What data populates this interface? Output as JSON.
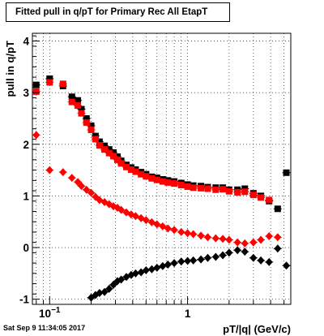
{
  "chart_data": {
    "type": "scatter",
    "title": "Fitted pull in q/pT for Primary Rec All EtapT",
    "xlabel": "pT/|q| (GeV/c)",
    "ylabel": "pull in q/pT",
    "xscale": "log",
    "xlim": [
      0.075,
      5.6
    ],
    "ylim": [
      -1.1,
      4.15
    ],
    "yticks": [
      -1,
      0,
      1,
      2,
      3,
      4
    ],
    "xtick_labels": [
      {
        "value": 0.1,
        "label": "10−1"
      },
      {
        "value": 1,
        "label": "1"
      }
    ],
    "grid": true,
    "series": [
      {
        "colors": {
          "marker": "#000000"
        },
        "marker": "square",
        "points": [
          [
            0.08,
            3.15
          ],
          [
            0.1,
            3.27
          ],
          [
            0.125,
            3.13
          ],
          [
            0.145,
            2.92
          ],
          [
            0.16,
            2.85
          ],
          [
            0.17,
            2.68
          ],
          [
            0.185,
            2.5
          ],
          [
            0.2,
            2.36
          ],
          [
            0.215,
            2.16
          ],
          [
            0.23,
            2.05
          ],
          [
            0.25,
            1.97
          ],
          [
            0.27,
            1.9
          ],
          [
            0.29,
            1.84
          ],
          [
            0.31,
            1.76
          ],
          [
            0.33,
            1.68
          ],
          [
            0.36,
            1.6
          ],
          [
            0.39,
            1.55
          ],
          [
            0.42,
            1.51
          ],
          [
            0.46,
            1.46
          ],
          [
            0.5,
            1.42
          ],
          [
            0.55,
            1.37
          ],
          [
            0.6,
            1.35
          ],
          [
            0.66,
            1.32
          ],
          [
            0.72,
            1.3
          ],
          [
            0.8,
            1.28
          ],
          [
            0.9,
            1.25
          ],
          [
            1.0,
            1.22
          ],
          [
            1.1,
            1.2
          ],
          [
            1.25,
            1.19
          ],
          [
            1.4,
            1.17
          ],
          [
            1.6,
            1.16
          ],
          [
            1.8,
            1.16
          ],
          [
            2.0,
            1.12
          ],
          [
            2.3,
            1.12
          ],
          [
            2.6,
            1.14
          ],
          [
            3.0,
            1.05
          ],
          [
            3.4,
            1.0
          ],
          [
            3.9,
            0.9
          ],
          [
            4.5,
            0.75
          ],
          [
            5.2,
            1.45
          ]
        ]
      },
      {
        "colors": {
          "marker": "#ff0000"
        },
        "marker": "square",
        "points": [
          [
            0.08,
            3.02
          ],
          [
            0.1,
            3.2
          ],
          [
            0.125,
            3.17
          ],
          [
            0.145,
            2.82
          ],
          [
            0.16,
            2.75
          ],
          [
            0.17,
            2.6
          ],
          [
            0.185,
            2.42
          ],
          [
            0.2,
            2.28
          ],
          [
            0.215,
            2.1
          ],
          [
            0.23,
            1.98
          ],
          [
            0.25,
            1.9
          ],
          [
            0.27,
            1.83
          ],
          [
            0.29,
            1.77
          ],
          [
            0.31,
            1.7
          ],
          [
            0.33,
            1.63
          ],
          [
            0.36,
            1.56
          ],
          [
            0.39,
            1.51
          ],
          [
            0.42,
            1.47
          ],
          [
            0.46,
            1.42
          ],
          [
            0.5,
            1.38
          ],
          [
            0.55,
            1.34
          ],
          [
            0.6,
            1.31
          ],
          [
            0.66,
            1.28
          ],
          [
            0.72,
            1.26
          ],
          [
            0.8,
            1.24
          ],
          [
            0.9,
            1.21
          ],
          [
            1.0,
            1.18
          ],
          [
            1.1,
            1.16
          ],
          [
            1.25,
            1.15
          ],
          [
            1.4,
            1.14
          ],
          [
            1.6,
            1.12
          ],
          [
            1.8,
            1.13
          ],
          [
            2.0,
            1.09
          ],
          [
            2.3,
            1.07
          ],
          [
            2.6,
            1.08
          ],
          [
            3.0,
            1.02
          ],
          [
            3.4,
            0.97
          ],
          [
            3.9,
            0.92
          ]
        ]
      },
      {
        "colors": {
          "marker": "#ff0000"
        },
        "marker": "diamond",
        "points": [
          [
            0.08,
            2.18
          ],
          [
            0.1,
            1.5
          ],
          [
            0.125,
            1.46
          ],
          [
            0.145,
            1.35
          ],
          [
            0.16,
            1.27
          ],
          [
            0.17,
            1.19
          ],
          [
            0.185,
            1.12
          ],
          [
            0.2,
            1.06
          ],
          [
            0.215,
            0.98
          ],
          [
            0.23,
            0.92
          ],
          [
            0.25,
            0.88
          ],
          [
            0.27,
            0.84
          ],
          [
            0.29,
            0.8
          ],
          [
            0.31,
            0.77
          ],
          [
            0.33,
            0.73
          ],
          [
            0.36,
            0.68
          ],
          [
            0.39,
            0.64
          ],
          [
            0.42,
            0.61
          ],
          [
            0.46,
            0.57
          ],
          [
            0.5,
            0.53
          ],
          [
            0.55,
            0.49
          ],
          [
            0.6,
            0.45
          ],
          [
            0.66,
            0.41
          ],
          [
            0.72,
            0.37
          ],
          [
            0.8,
            0.34
          ],
          [
            0.9,
            0.3
          ],
          [
            1.0,
            0.28
          ],
          [
            1.1,
            0.26
          ],
          [
            1.25,
            0.23
          ],
          [
            1.4,
            0.2
          ],
          [
            1.6,
            0.18
          ],
          [
            1.8,
            0.17
          ],
          [
            2.0,
            0.15
          ],
          [
            2.3,
            0.1
          ],
          [
            2.6,
            0.08
          ],
          [
            3.0,
            0.1
          ],
          [
            3.4,
            0.15
          ],
          [
            3.9,
            0.22
          ],
          [
            4.5,
            0.2
          ]
        ]
      },
      {
        "colors": {
          "marker": "#000000"
        },
        "marker": "diamond",
        "points": [
          [
            0.2,
            -0.97
          ],
          [
            0.215,
            -0.92
          ],
          [
            0.23,
            -0.88
          ],
          [
            0.25,
            -0.86
          ],
          [
            0.27,
            -0.8
          ],
          [
            0.29,
            -0.72
          ],
          [
            0.31,
            -0.65
          ],
          [
            0.33,
            -0.62
          ],
          [
            0.36,
            -0.57
          ],
          [
            0.39,
            -0.53
          ],
          [
            0.42,
            -0.5
          ],
          [
            0.46,
            -0.48
          ],
          [
            0.5,
            -0.44
          ],
          [
            0.55,
            -0.42
          ],
          [
            0.6,
            -0.39
          ],
          [
            0.66,
            -0.36
          ],
          [
            0.72,
            -0.33
          ],
          [
            0.8,
            -0.3
          ],
          [
            0.9,
            -0.27
          ],
          [
            1.0,
            -0.26
          ],
          [
            1.1,
            -0.25
          ],
          [
            1.25,
            -0.23
          ],
          [
            1.4,
            -0.2
          ],
          [
            1.6,
            -0.18
          ],
          [
            1.8,
            -0.15
          ],
          [
            2.0,
            -0.1
          ],
          [
            2.3,
            -0.05
          ],
          [
            2.6,
            -0.08
          ],
          [
            3.0,
            -0.2
          ],
          [
            3.4,
            -0.25
          ],
          [
            3.9,
            -0.28
          ],
          [
            4.5,
            -0.02
          ],
          [
            5.2,
            -0.35
          ]
        ]
      }
    ]
  },
  "footer": {
    "timestamp": "Sat Sep  9 11:34:05 2017"
  }
}
